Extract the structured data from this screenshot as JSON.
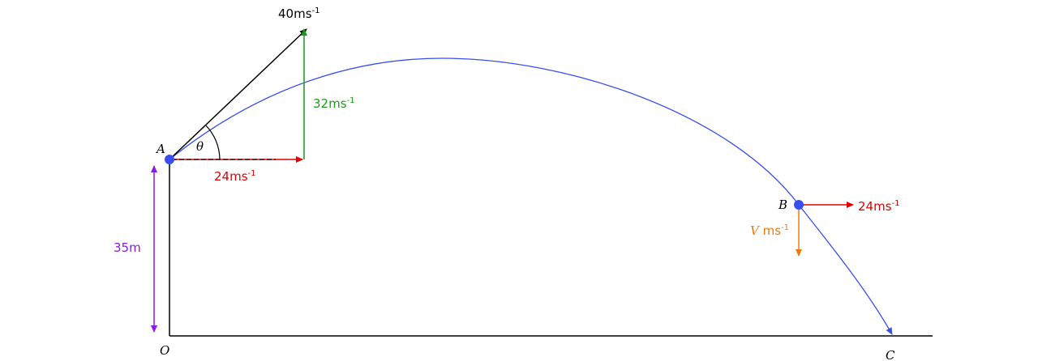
{
  "points": {
    "A": "A",
    "B": "B",
    "C": "C",
    "O": "O"
  },
  "angle": "θ",
  "labels": {
    "launch_velocity": {
      "text": "40ms",
      "sup": "-1"
    },
    "vertical_component": {
      "text": "32ms",
      "sup": "-1"
    },
    "horizontal_component": {
      "text": "24ms",
      "sup": "-1"
    },
    "b_horizontal": {
      "text": "24ms",
      "sup": "-1"
    },
    "b_vertical": {
      "symbol": "V",
      "text": " ms",
      "sup": "-1"
    },
    "height": "35m"
  }
}
